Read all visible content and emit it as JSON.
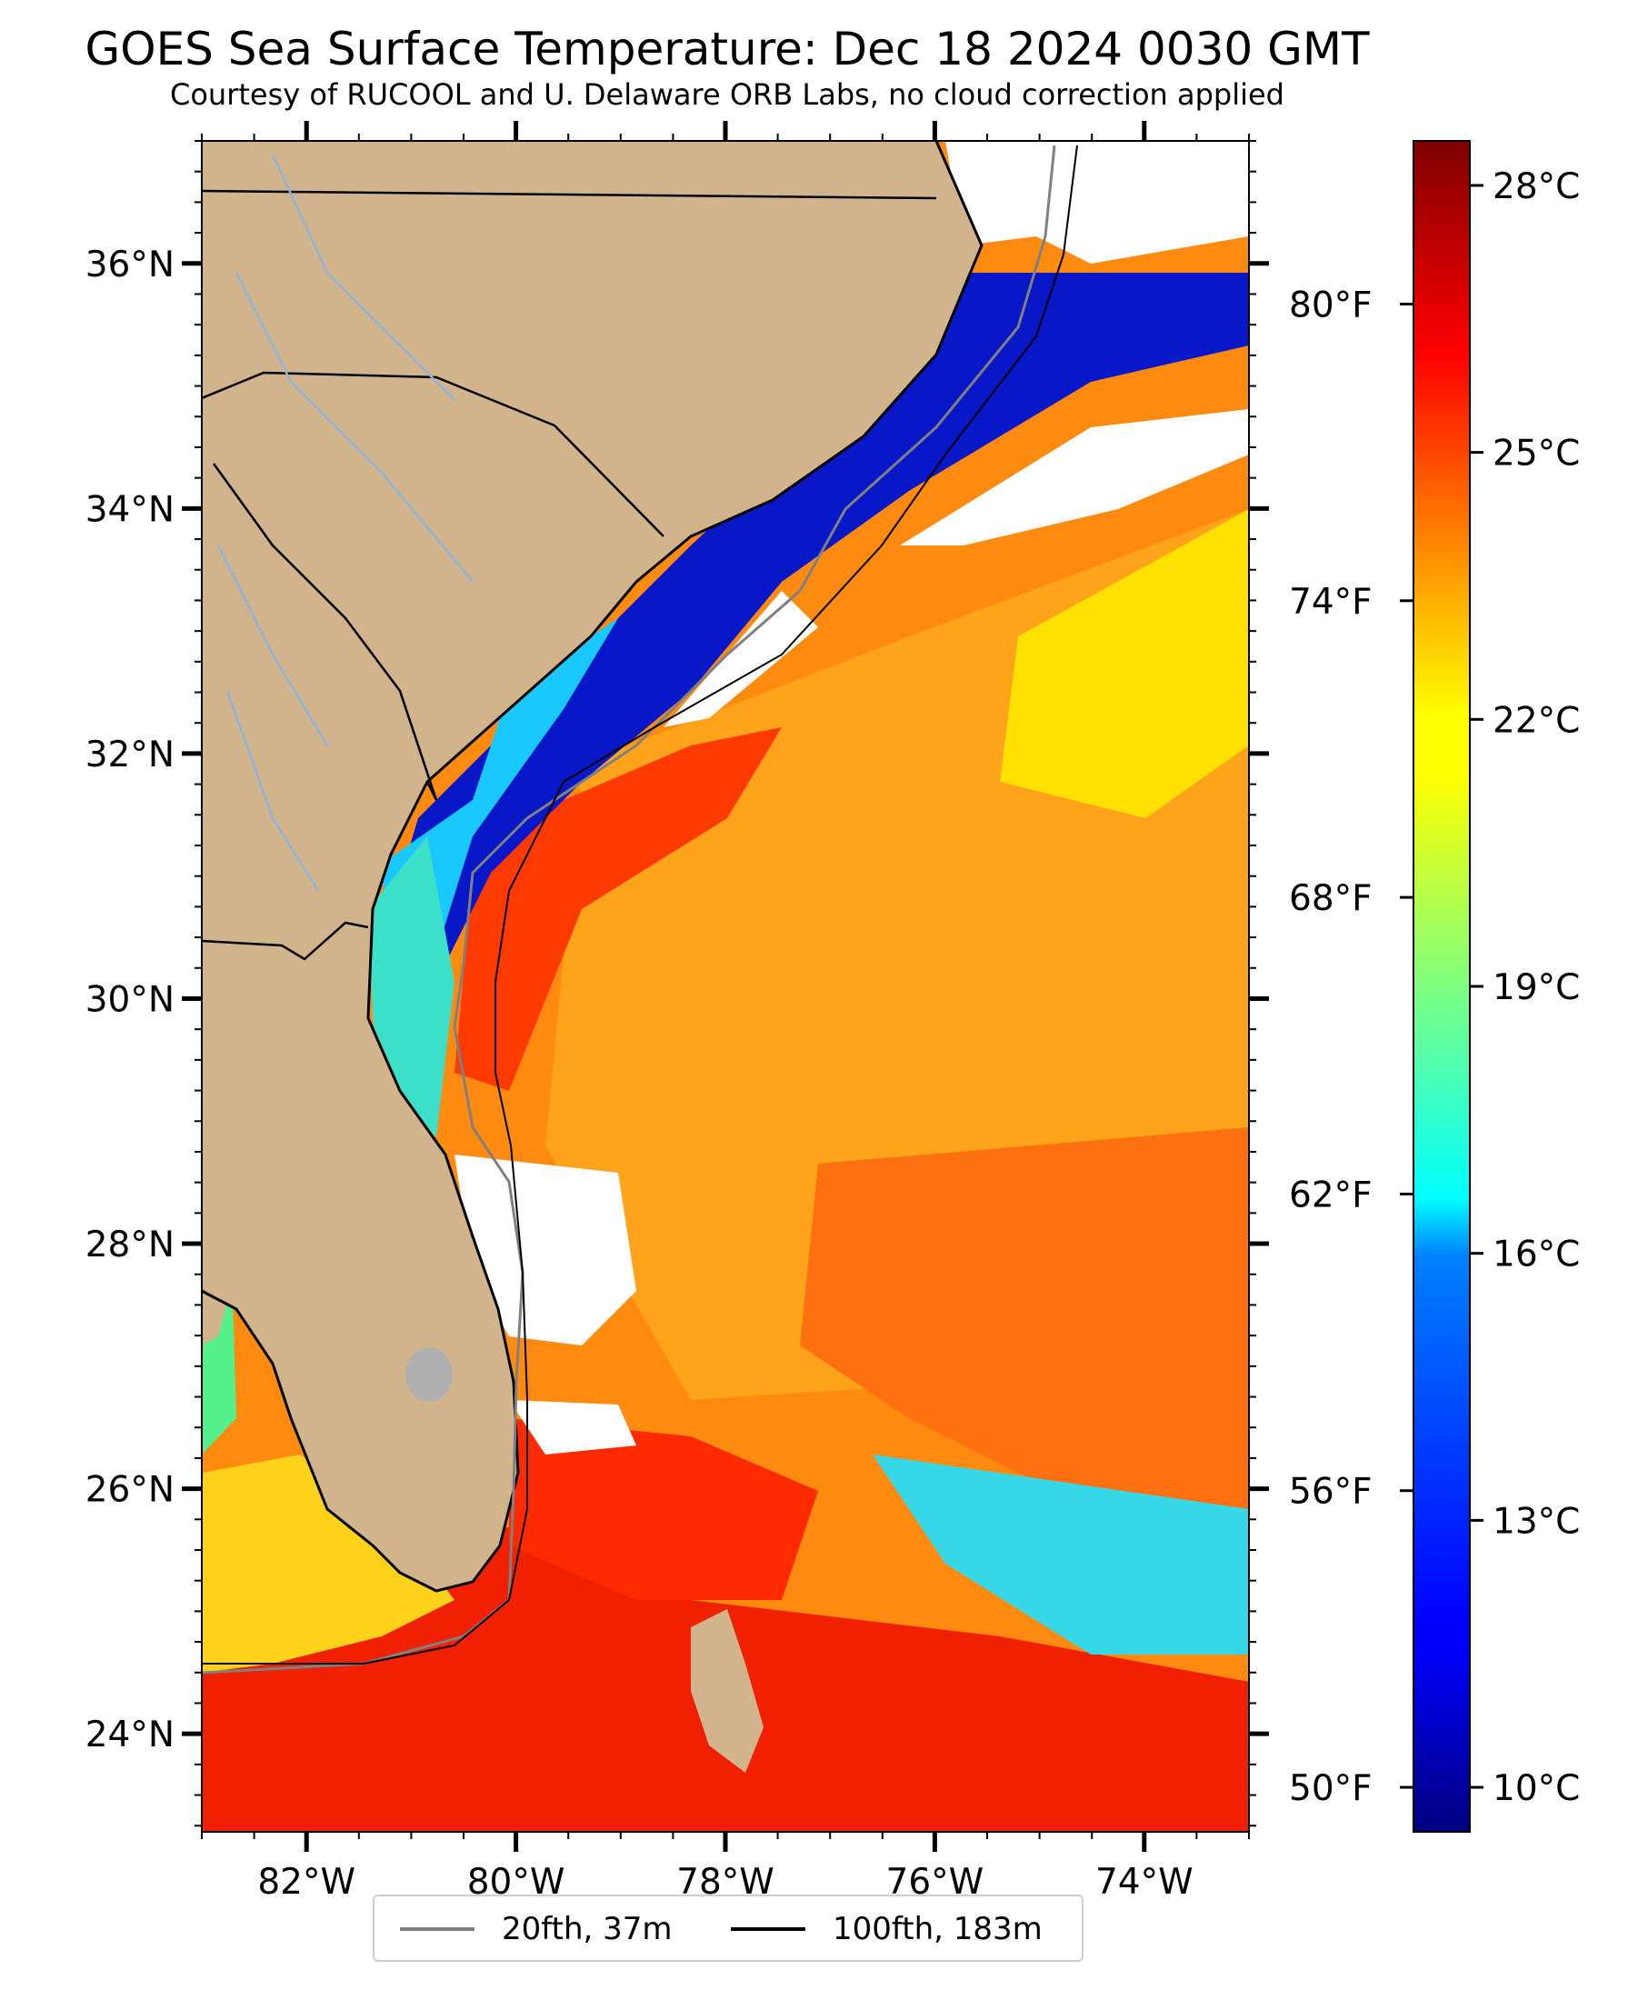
{
  "title": "GOES Sea Surface Temperature: Dec 18 2024 0030 GMT",
  "subtitle": "Courtesy of RUCOOL and U. Delaware ORB Labs, no cloud correction applied",
  "map": {
    "lon_range": [
      -83,
      -73
    ],
    "lat_range": [
      23.2,
      37
    ],
    "lat_labels": [
      {
        "lat": 36,
        "label": "36°N"
      },
      {
        "lat": 34,
        "label": "34°N"
      },
      {
        "lat": 32,
        "label": "32°N"
      },
      {
        "lat": 30,
        "label": "30°N"
      },
      {
        "lat": 28,
        "label": "28°N"
      },
      {
        "lat": 26,
        "label": "26°N"
      },
      {
        "lat": 24,
        "label": "24°N"
      }
    ],
    "lon_labels": [
      {
        "lon": -82,
        "label": "82°W"
      },
      {
        "lon": -80,
        "label": "80°W"
      },
      {
        "lon": -78,
        "label": "78°W"
      },
      {
        "lon": -76,
        "label": "76°W"
      },
      {
        "lon": -74,
        "label": "74°W"
      }
    ],
    "land_color": "#d2b48c",
    "cloud_color": "#ffffff",
    "coastline_color": "#000000",
    "river_color": "#8fb3d9"
  },
  "colorbar": {
    "colormap": "jet",
    "range_c": [
      9.5,
      28.5
    ],
    "celsius_ticks": [
      {
        "value": 28,
        "label": "28°C"
      },
      {
        "value": 25,
        "label": "25°C"
      },
      {
        "value": 22,
        "label": "22°C"
      },
      {
        "value": 19,
        "label": "19°C"
      },
      {
        "value": 16,
        "label": "16°C"
      },
      {
        "value": 13,
        "label": "13°C"
      },
      {
        "value": 10,
        "label": "10°C"
      }
    ],
    "fahrenheit_ticks": [
      {
        "value": 80,
        "label": "80°F"
      },
      {
        "value": 74,
        "label": "74°F"
      },
      {
        "value": 68,
        "label": "68°F"
      },
      {
        "value": 62,
        "label": "62°F"
      },
      {
        "value": 56,
        "label": "56°F"
      },
      {
        "value": 50,
        "label": "50°F"
      }
    ]
  },
  "legend": {
    "items": [
      {
        "label": "20fth, 37m",
        "color": "#808080"
      },
      {
        "label": "100fth, 183m",
        "color": "#000000"
      }
    ]
  }
}
